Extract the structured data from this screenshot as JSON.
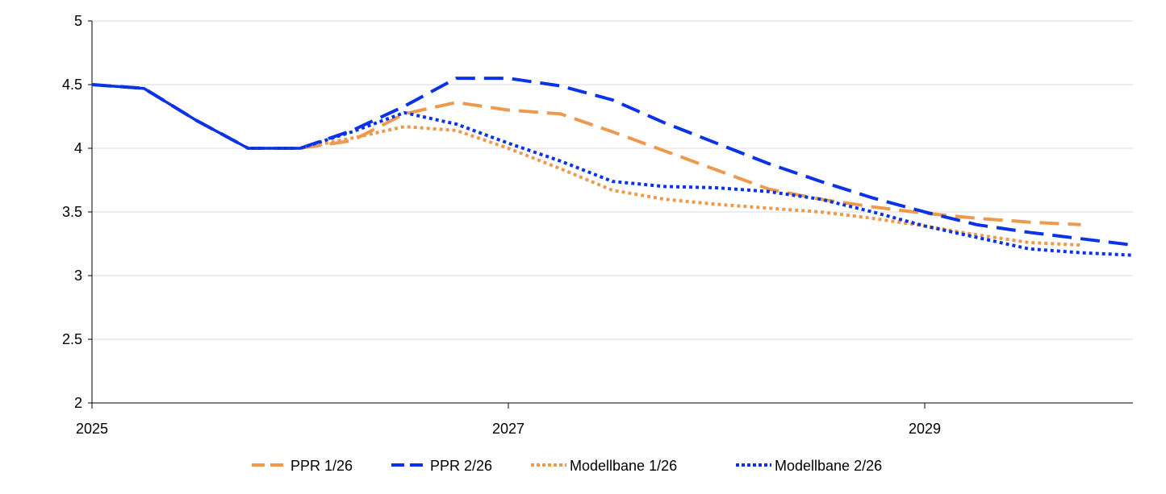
{
  "chart_data": {
    "type": "line",
    "title": "",
    "xlabel": "",
    "ylabel": "",
    "xlim": [
      2025.0,
      2030.0
    ],
    "ylim": [
      2,
      5
    ],
    "x_ticks": [
      {
        "value": 2025,
        "label": "2025"
      },
      {
        "value": 2027,
        "label": "2027"
      },
      {
        "value": 2029,
        "label": "2029"
      }
    ],
    "y_ticks": [
      {
        "value": 2,
        "label": "2"
      },
      {
        "value": 2.5,
        "label": "2.5"
      },
      {
        "value": 3,
        "label": "3"
      },
      {
        "value": 3.5,
        "label": "3.5"
      },
      {
        "value": 4,
        "label": "4"
      },
      {
        "value": 4.5,
        "label": "4.5"
      },
      {
        "value": 5,
        "label": "5"
      }
    ],
    "grid": "horizontal",
    "legend_position": "bottom",
    "series": [
      {
        "name": "PPR 1/26",
        "color": "#ED9A4E",
        "style": "dashed",
        "x": [
          2025.0,
          2025.25,
          2025.5,
          2025.75,
          2026.0,
          2026.25,
          2026.5,
          2026.75,
          2027.0,
          2027.25,
          2027.5,
          2027.75,
          2028.0,
          2028.25,
          2028.5,
          2028.75,
          2029.0,
          2029.25,
          2029.5,
          2029.75
        ],
        "y": [
          4.5,
          4.47,
          4.22,
          4.0,
          4.0,
          4.06,
          4.27,
          4.36,
          4.3,
          4.27,
          4.13,
          3.98,
          3.83,
          3.68,
          3.6,
          3.54,
          3.49,
          3.45,
          3.42,
          3.4
        ]
      },
      {
        "name": "PPR 2/26",
        "color": "#0A32E6",
        "style": "dashed",
        "x": [
          2025.0,
          2025.25,
          2025.5,
          2025.75,
          2026.0,
          2026.25,
          2026.5,
          2026.75,
          2027.0,
          2027.25,
          2027.5,
          2027.75,
          2028.0,
          2028.25,
          2028.5,
          2028.75,
          2029.0,
          2029.25,
          2029.5,
          2029.75,
          2030.0
        ],
        "y": [
          4.5,
          4.47,
          4.22,
          4.0,
          4.0,
          4.14,
          4.33,
          4.55,
          4.55,
          4.49,
          4.38,
          4.2,
          4.04,
          3.88,
          3.74,
          3.61,
          3.5,
          3.4,
          3.34,
          3.29,
          3.24
        ]
      },
      {
        "name": "Modellbane 1/26",
        "color": "#ED9A4E",
        "style": "dotted",
        "x": [
          2025.75,
          2026.0,
          2026.25,
          2026.5,
          2026.75,
          2027.0,
          2027.25,
          2027.5,
          2027.75,
          2028.0,
          2028.25,
          2028.5,
          2028.75,
          2029.0,
          2029.25,
          2029.5,
          2029.75
        ],
        "y": [
          4.0,
          4.0,
          4.08,
          4.17,
          4.14,
          4.0,
          3.84,
          3.67,
          3.6,
          3.56,
          3.53,
          3.5,
          3.45,
          3.39,
          3.32,
          3.26,
          3.24
        ]
      },
      {
        "name": "Modellbane 2/26",
        "color": "#0A32E6",
        "style": "dotted",
        "x": [
          2026.0,
          2026.25,
          2026.5,
          2026.75,
          2027.0,
          2027.25,
          2027.5,
          2027.75,
          2028.0,
          2028.25,
          2028.5,
          2028.75,
          2029.0,
          2029.25,
          2029.5,
          2029.75,
          2030.0
        ],
        "y": [
          4.0,
          4.13,
          4.28,
          4.19,
          4.04,
          3.9,
          3.74,
          3.7,
          3.69,
          3.66,
          3.6,
          3.5,
          3.39,
          3.3,
          3.21,
          3.18,
          3.16
        ]
      }
    ]
  }
}
